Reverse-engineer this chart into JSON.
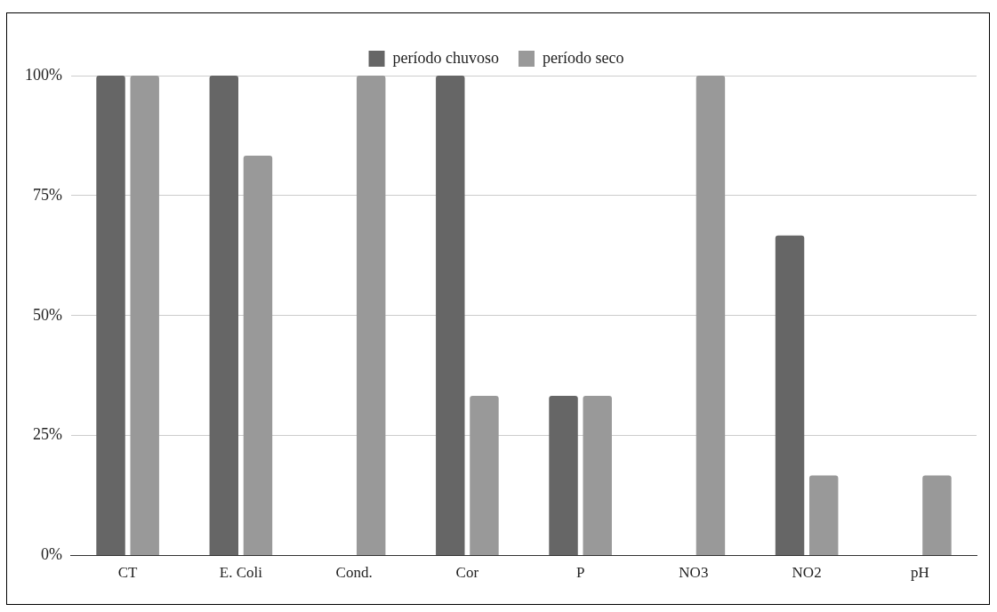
{
  "chart_data": {
    "type": "bar",
    "categories": [
      "CT",
      "E. Coli",
      "Cond.",
      "Cor",
      "P",
      "NO3",
      "NO2",
      "pH"
    ],
    "series": [
      {
        "name": "período chuvoso",
        "color": "#666666",
        "values": [
          100,
          100,
          0,
          100,
          33.3,
          0,
          66.7,
          0
        ]
      },
      {
        "name": "período seco",
        "color": "#999999",
        "values": [
          100,
          83.3,
          100,
          33.3,
          33.3,
          100,
          16.7,
          16.7
        ]
      }
    ],
    "ylim": [
      0,
      100
    ],
    "yticks": [
      {
        "value": 0,
        "label": "0%"
      },
      {
        "value": 25,
        "label": "25%"
      },
      {
        "value": 50,
        "label": "50%"
      },
      {
        "value": 75,
        "label": "75%"
      },
      {
        "value": 100,
        "label": "100%"
      }
    ],
    "grid": "y",
    "legend": "top"
  }
}
